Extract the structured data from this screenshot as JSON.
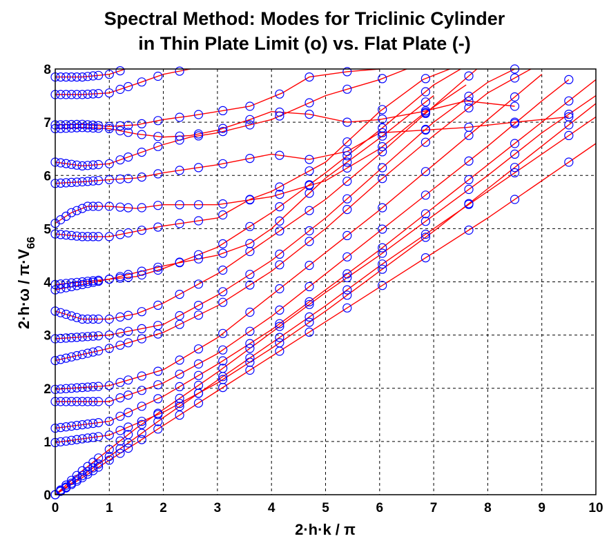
{
  "chart_data": {
    "type": "line",
    "title": "Spectral Method: Modes for Triclinic Cylinder",
    "subtitle": "in Thin Plate Limit (o) vs. Flat Plate (-)",
    "xlabel": "2·h·k / π",
    "ylabel_main": "2·h·ω / π·V",
    "ylabel_sub": "66",
    "xlim": [
      0,
      10
    ],
    "ylim": [
      0,
      8
    ],
    "xticks": [
      "0",
      "1",
      "2",
      "3",
      "4",
      "5",
      "6",
      "7",
      "8",
      "9",
      "10"
    ],
    "yticks": [
      "0",
      "1",
      "2",
      "3",
      "4",
      "5",
      "6",
      "7",
      "8"
    ],
    "grid": true,
    "colors": {
      "line": "#ff0000",
      "marker": "#0000ff"
    },
    "series": [
      {
        "x": [
          0,
          0.5,
          1,
          1.5,
          2,
          3,
          4,
          5,
          6,
          7,
          8,
          9,
          10
        ],
        "y": [
          0,
          0.32,
          0.65,
          0.97,
          1.3,
          1.95,
          2.6,
          3.25,
          3.9,
          4.55,
          5.2,
          5.9,
          6.6
        ]
      },
      {
        "x": [
          0,
          0.5,
          1,
          1.5,
          2,
          3,
          4,
          5,
          6,
          7,
          8,
          9,
          10
        ],
        "y": [
          0,
          0.36,
          0.72,
          1.08,
          1.45,
          2.15,
          2.85,
          3.55,
          4.3,
          5.0,
          5.7,
          6.4,
          7.1
        ]
      },
      {
        "x": [
          0,
          0.5,
          1,
          1.5,
          2,
          3,
          4,
          5,
          6,
          7,
          8,
          9,
          10
        ],
        "y": [
          0,
          0.45,
          0.85,
          1.25,
          1.6,
          2.3,
          3.05,
          3.8,
          4.5,
          5.25,
          6.0,
          6.8,
          7.5
        ]
      },
      {
        "x": [
          0,
          1,
          2,
          3,
          4,
          5,
          6,
          7,
          8,
          9,
          10
        ],
        "y": [
          0.98,
          1.12,
          1.55,
          2.1,
          2.75,
          3.45,
          4.2,
          4.95,
          5.75,
          6.55,
          7.35
        ]
      },
      {
        "x": [
          0,
          1,
          2,
          3,
          4,
          5,
          6,
          7,
          8,
          9,
          10
        ],
        "y": [
          1.25,
          1.38,
          1.85,
          2.45,
          3.1,
          3.85,
          4.6,
          5.4,
          6.2,
          7.0,
          7.8
        ]
      },
      {
        "x": [
          0,
          1,
          2,
          3,
          4,
          5,
          6,
          7,
          8,
          9,
          9.5
        ],
        "y": [
          1.75,
          1.75,
          2.1,
          2.65,
          3.35,
          4.15,
          4.95,
          5.75,
          6.55,
          7.4,
          7.8
        ]
      },
      {
        "x": [
          0,
          1,
          2,
          3,
          4,
          5,
          6,
          7,
          8,
          9
        ],
        "y": [
          1.98,
          2.05,
          2.35,
          2.95,
          3.75,
          4.55,
          5.35,
          6.2,
          7.05,
          7.9
        ]
      },
      {
        "x": [
          0,
          1,
          2,
          3,
          4,
          5,
          6,
          7,
          8,
          8.8
        ],
        "y": [
          2.52,
          2.75,
          3.05,
          3.55,
          4.2,
          5.0,
          5.9,
          6.75,
          7.55,
          8.0
        ]
      },
      {
        "x": [
          0,
          1,
          2,
          3,
          4,
          5,
          6,
          7,
          8,
          8.5
        ],
        "y": [
          2.93,
          3.0,
          3.2,
          3.75,
          4.4,
          5.2,
          6.1,
          7.0,
          7.75,
          8.0
        ]
      },
      {
        "x": [
          0,
          0.5,
          1,
          1.5,
          2,
          3,
          4,
          5,
          6,
          7,
          7.8
        ],
        "y": [
          3.45,
          3.3,
          3.3,
          3.4,
          3.6,
          4.15,
          4.85,
          5.55,
          6.4,
          7.3,
          8.0
        ]
      },
      {
        "x": [
          0,
          0.5,
          1,
          1.5,
          2,
          3,
          4,
          5,
          6,
          7,
          7.5
        ],
        "y": [
          3.85,
          3.95,
          4.05,
          4.1,
          4.25,
          4.65,
          5.3,
          6.05,
          6.85,
          7.7,
          8.0
        ]
      },
      {
        "x": [
          0,
          1,
          2,
          3,
          3.6,
          4,
          5,
          6,
          7
        ],
        "y": [
          3.95,
          4.05,
          4.3,
          4.5,
          4.72,
          5.0,
          5.95,
          6.7,
          7.5
        ]
      },
      {
        "x": [
          0,
          0.5,
          1,
          1.5,
          2,
          3,
          3.6,
          4,
          5,
          6,
          6.8,
          7.3
        ],
        "y": [
          4.9,
          4.85,
          4.85,
          4.95,
          5.05,
          5.2,
          5.55,
          5.7,
          6.25,
          7.2,
          7.8,
          8.0
        ]
      },
      {
        "x": [
          0,
          0.3,
          0.6,
          1,
          1.5,
          2,
          3,
          4,
          5,
          6,
          6.8,
          7.6
        ],
        "y": [
          5.1,
          5.3,
          5.42,
          5.42,
          5.38,
          5.45,
          5.45,
          5.6,
          5.9,
          6.5,
          7.15,
          7.7
        ]
      },
      {
        "x": [
          0,
          0.5,
          1,
          1.5,
          2,
          3,
          4,
          4.7,
          5.4,
          6,
          6.8,
          7.6,
          8.5,
          9.5
        ],
        "y": [
          5.85,
          5.88,
          5.92,
          5.95,
          6.05,
          6.2,
          6.4,
          6.3,
          6.45,
          6.8,
          6.85,
          6.9,
          7.0,
          7.1
        ]
      },
      {
        "x": [
          0,
          0.5,
          1,
          1.5,
          2,
          2.5,
          3,
          4,
          5,
          6,
          6.5
        ],
        "y": [
          6.25,
          6.18,
          6.22,
          6.4,
          6.58,
          6.72,
          6.8,
          7.05,
          7.5,
          7.8,
          8.0
        ]
      },
      {
        "x": [
          0,
          0.5,
          1,
          1.5,
          2,
          2.5,
          3,
          3.6,
          4,
          4.7,
          5.4,
          6,
          6.8,
          7.6,
          8.5
        ],
        "y": [
          6.88,
          6.9,
          6.88,
          6.78,
          6.72,
          6.75,
          6.85,
          7.05,
          7.2,
          7.15,
          7.0,
          7.05,
          7.2,
          7.4,
          7.3
        ]
      },
      {
        "x": [
          0,
          0.5,
          1,
          1.5,
          2,
          2.5,
          3,
          3.6,
          4.2,
          4.7,
          5.4,
          6
        ],
        "y": [
          6.95,
          6.96,
          6.92,
          6.95,
          7.05,
          7.12,
          7.2,
          7.3,
          7.55,
          7.85,
          7.95,
          8.0
        ]
      },
      {
        "x": [
          0,
          0.5,
          1,
          1.5,
          2,
          2.5
        ],
        "y": [
          7.52,
          7.52,
          7.55,
          7.72,
          7.9,
          8.0
        ]
      },
      {
        "x": [
          0,
          0.5,
          1,
          1.3
        ],
        "y": [
          7.85,
          7.85,
          7.9,
          8.0
        ]
      }
    ],
    "markers": {
      "x_columns": [
        0,
        0.1,
        0.2,
        0.3,
        0.4,
        0.5,
        0.6,
        0.7,
        0.8,
        1.0,
        1.2,
        1.35,
        1.6,
        1.9,
        2.3,
        2.65,
        3.1,
        3.6,
        4.15,
        4.7,
        5.4,
        6.05,
        6.85,
        7.65,
        8.5,
        9.5
      ],
      "y_min": 0,
      "y_max": 8
    }
  }
}
